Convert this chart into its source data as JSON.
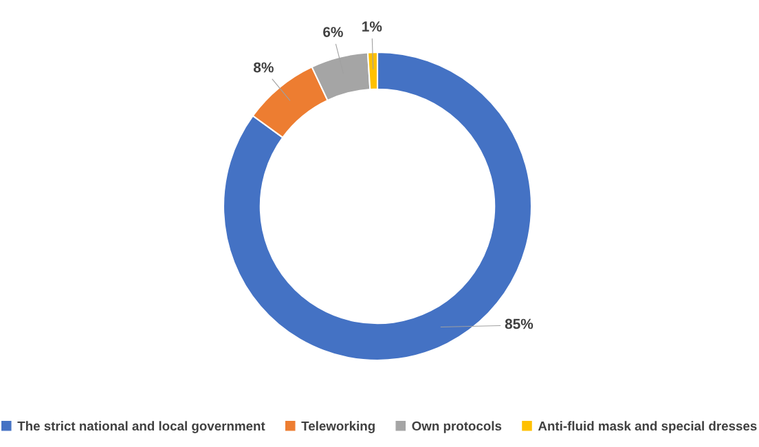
{
  "chart_data": {
    "type": "donut",
    "categories": [
      "The strict national and local government",
      "Teleworking",
      "Own protocols",
      "Anti-fluid mask and special dresses"
    ],
    "values": [
      85,
      8,
      6,
      1
    ],
    "colors": [
      "#4472c4",
      "#ed7d31",
      "#a5a5a5",
      "#ffc000"
    ],
    "value_labels": [
      "85%",
      "8%",
      "6%",
      "1%"
    ],
    "legend": "bottom"
  }
}
